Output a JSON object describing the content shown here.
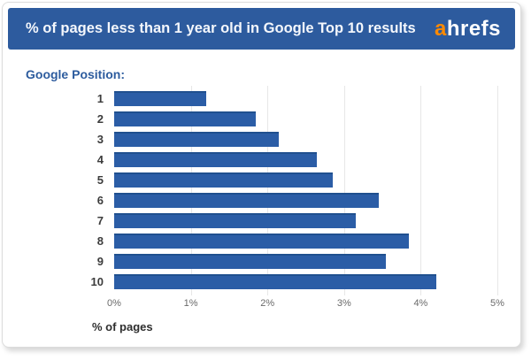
{
  "header": {
    "title": "% of pages less than 1 year old in Google Top 10 results",
    "logo_prefix": "a",
    "logo_suffix": "hrefs"
  },
  "chart": {
    "legend_label": "Google Position:",
    "xlabel": "% of pages"
  },
  "chart_data": {
    "type": "bar",
    "orientation": "horizontal",
    "title": "% of pages less than 1 year old in Google Top 10 results",
    "categories": [
      "1",
      "2",
      "3",
      "4",
      "5",
      "6",
      "7",
      "8",
      "9",
      "10"
    ],
    "values": [
      1.2,
      1.85,
      2.15,
      2.65,
      2.85,
      3.45,
      3.15,
      3.85,
      3.55,
      4.2
    ],
    "xlabel": "% of pages",
    "ylabel": "Google Position",
    "xlim": [
      0,
      5
    ],
    "xticks": [
      "0%",
      "1%",
      "2%",
      "3%",
      "4%",
      "5%"
    ],
    "grid": "vertical-light",
    "bar_color": "#2b5da6",
    "bar_edge_color": "#20508f",
    "header_color": "#2d5b9e",
    "logo_accent_color": "#ff8a00"
  }
}
